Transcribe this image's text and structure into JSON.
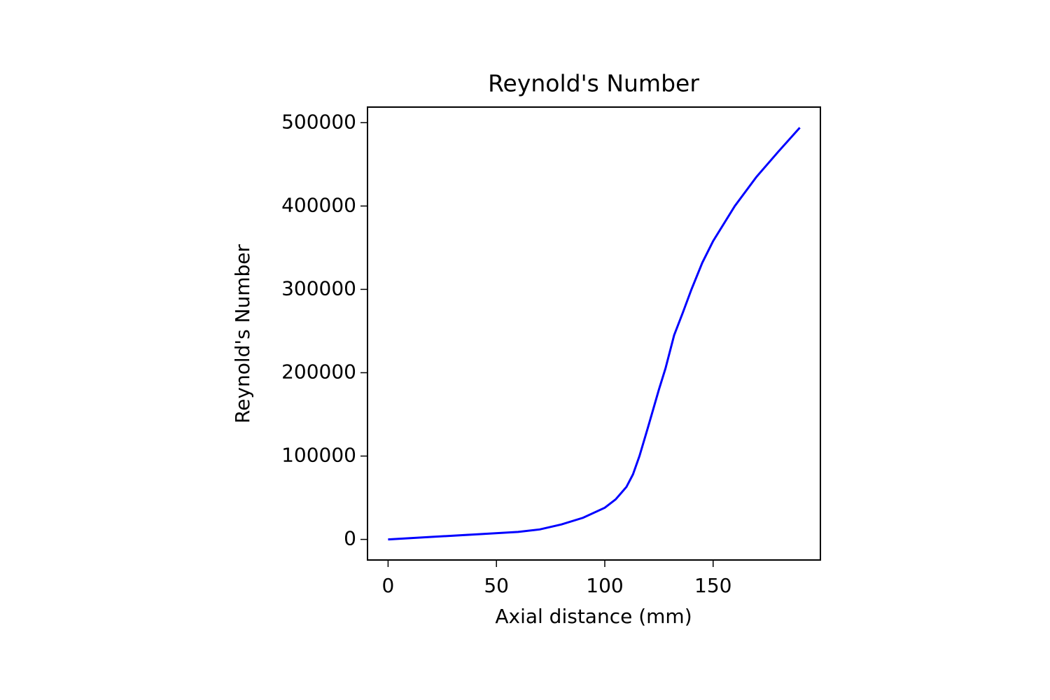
{
  "chart_data": {
    "type": "line",
    "title": "Reynold's Number",
    "x_label": "Axial distance (mm)",
    "y_label": "Reynold's Number",
    "series": [
      {
        "name": "Reynold's Number",
        "color": "#0000ff",
        "x": [
          0,
          20,
          40,
          60,
          70,
          80,
          90,
          100,
          105,
          110,
          113,
          116,
          120,
          125,
          128,
          132,
          136,
          140,
          145,
          150,
          160,
          170,
          180,
          190
        ],
        "values": [
          0,
          3000,
          6000,
          9000,
          12000,
          18000,
          26000,
          38000,
          48000,
          63000,
          78000,
          100000,
          135000,
          180000,
          205000,
          245000,
          272000,
          300000,
          332000,
          358000,
          400000,
          435000,
          465000,
          494000
        ]
      }
    ],
    "xlim": [
      -9.5,
      199.5
    ],
    "xticks": [
      0,
      50,
      100,
      150
    ],
    "ylim": [
      -24700,
      518700
    ],
    "yticks": [
      0,
      100000,
      200000,
      300000,
      400000,
      500000
    ],
    "grid": false
  }
}
